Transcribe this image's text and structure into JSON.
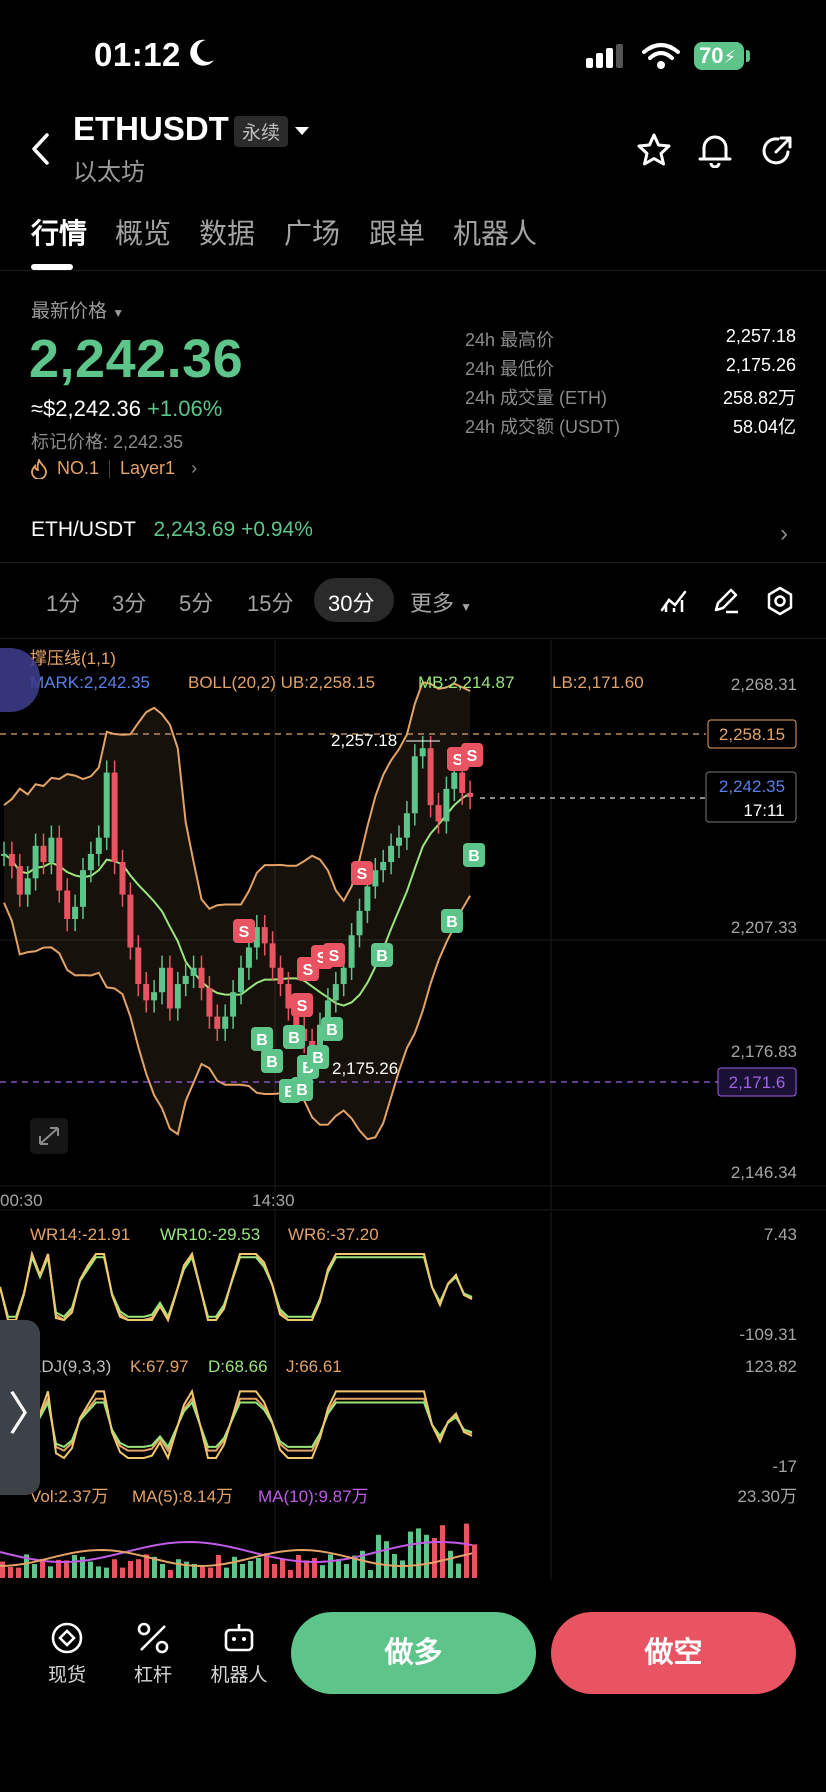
{
  "status_bar": {
    "time": "01:12",
    "battery": "70"
  },
  "header": {
    "title": "ETHUSDT",
    "badge": "永续",
    "subtitle": "以太坊"
  },
  "tabs": [
    {
      "label": "行情",
      "active": true
    },
    {
      "label": "概览"
    },
    {
      "label": "数据"
    },
    {
      "label": "广场"
    },
    {
      "label": "跟单"
    },
    {
      "label": "机器人"
    }
  ],
  "price": {
    "label": "最新价格",
    "last": "2,242.36",
    "usd": "≈$2,242.36",
    "change": "+1.06%",
    "mark": "标记价格: 2,242.35",
    "rank": "NO.1",
    "tag": "Layer1"
  },
  "stats": [
    {
      "label": "24h 最高价",
      "value": "2,257.18"
    },
    {
      "label": "24h 最低价",
      "value": "2,175.26"
    },
    {
      "label": "24h 成交量 (ETH)",
      "value": "258.82万"
    },
    {
      "label": "24h 成交额 (USDT)",
      "value": "58.04亿"
    }
  ],
  "spot": {
    "pair": "ETH/USDT",
    "price": "2,243.69",
    "change": "+0.94%"
  },
  "intervals": [
    "1分",
    "3分",
    "5分",
    "15分",
    "30分",
    "更多"
  ],
  "active_interval": "30分",
  "chart": {
    "indicator_title": "撑压线(1,1)",
    "mark": "MARK:2,242.35",
    "boll": "BOLL(20,2) UB:2,258.15",
    "mb": "MB:2,214.87",
    "lb": "LB:2,171.60",
    "y_ticks": [
      "2,268.31",
      "2,207.33",
      "2,176.83",
      "2,146.34"
    ],
    "ub_tag": "2,258.15",
    "price_tag": "2,242.35",
    "countdown": "17:11",
    "lb_tag": "2,171.6",
    "high_label": "2,257.18",
    "low_label": "2,175.26",
    "x_ticks": [
      "00:30",
      "14:30"
    ],
    "wr": {
      "wr14": "WR14:-21.91",
      "wr10": "WR10:-29.53",
      "wr6": "WR6:-37.20",
      "top": "7.43",
      "bottom": "-109.31"
    },
    "kdj": {
      "title": "KDJ(9,3,3)",
      "k": "K:67.97",
      "d": "D:68.66",
      "j": "J:66.61",
      "top": "123.82",
      "bottom": "-17"
    },
    "vol": {
      "vol": "Vol:2.37万",
      "ma5": "MA(5):8.14万",
      "ma10": "MA(10):9.87万",
      "top": "23.30万"
    }
  },
  "chart_data": {
    "type": "candlestick",
    "x_ticks": [
      "00:30",
      "14:30"
    ],
    "ylim": [
      2146.34,
      2268.31
    ],
    "closes": [
      2228,
      2225,
      2218,
      2222,
      2230,
      2226,
      2232,
      2219,
      2212,
      2215,
      2224,
      2228,
      2232,
      2248,
      2226,
      2218,
      2205,
      2196,
      2192,
      2194,
      2200,
      2190,
      2196,
      2198,
      2200,
      2195,
      2188,
      2185,
      2188,
      2194,
      2200,
      2205,
      2210,
      2206,
      2200,
      2196,
      2190,
      2185,
      2182,
      2180,
      2186,
      2192,
      2196,
      2200,
      2208,
      2214,
      2220,
      2224,
      2226,
      2230,
      2232,
      2238,
      2252,
      2254,
      2240,
      2236,
      2244,
      2248,
      2243,
      2242
    ],
    "bollinger": {
      "ub": "2,258.15",
      "mb": "2,214.87",
      "lb": "2,171.60"
    },
    "high": "2,257.18",
    "low": "2,175.26"
  },
  "bottom_bar": {
    "items": [
      "现货",
      "杠杆",
      "机器人"
    ],
    "long": "做多",
    "short": "做空"
  }
}
